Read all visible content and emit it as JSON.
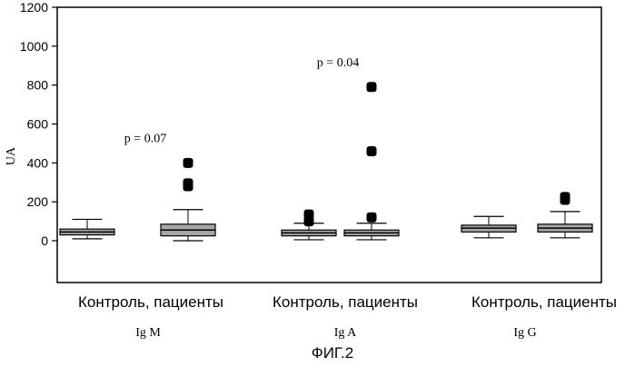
{
  "chart_data": {
    "type": "box",
    "ylabel": "UA",
    "ylim": [
      -200,
      1200
    ],
    "yticks": [
      0,
      200,
      400,
      600,
      800,
      1000,
      1200
    ],
    "xticks": [],
    "grid": false,
    "legend": "none",
    "box_fill": "#a6a6a6",
    "groups": [
      {
        "category_label": "Контроль, пациенты",
        "group_label": "Ig M",
        "annotation": "p = 0.07",
        "annotation_anchor_y": 530,
        "boxes": [
          {
            "name": "Контроль",
            "whisker_low": 10,
            "q1": 30,
            "median": 45,
            "q3": 60,
            "whisker_high": 110,
            "outliers": []
          },
          {
            "name": "пациенты",
            "whisker_low": 0,
            "q1": 25,
            "median": 55,
            "q3": 85,
            "whisker_high": 160,
            "outliers": [
              280,
              295,
              400
            ]
          }
        ]
      },
      {
        "category_label": "Контроль, пациенты",
        "group_label": "Ig A",
        "annotation": "p = 0.04",
        "annotation_anchor_y": 920,
        "boxes": [
          {
            "name": "Контроль",
            "whisker_low": 5,
            "q1": 25,
            "median": 40,
            "q3": 55,
            "whisker_high": 90,
            "outliers": [
              100,
              135
            ]
          },
          {
            "name": "пациенты",
            "whisker_low": 5,
            "q1": 25,
            "median": 40,
            "q3": 55,
            "whisker_high": 90,
            "outliers": [
              120,
              460,
              790
            ]
          }
        ]
      },
      {
        "category_label": "Контроль, пациенты",
        "group_label": "Ig G",
        "annotation": "",
        "boxes": [
          {
            "name": "Контроль",
            "whisker_low": 15,
            "q1": 45,
            "median": 65,
            "q3": 80,
            "whisker_high": 125,
            "outliers": []
          },
          {
            "name": "пациенты",
            "whisker_low": 15,
            "q1": 45,
            "median": 65,
            "q3": 85,
            "whisker_high": 150,
            "outliers": [
              210,
              225
            ]
          }
        ]
      }
    ]
  },
  "figure_caption": "ФИГ.2"
}
